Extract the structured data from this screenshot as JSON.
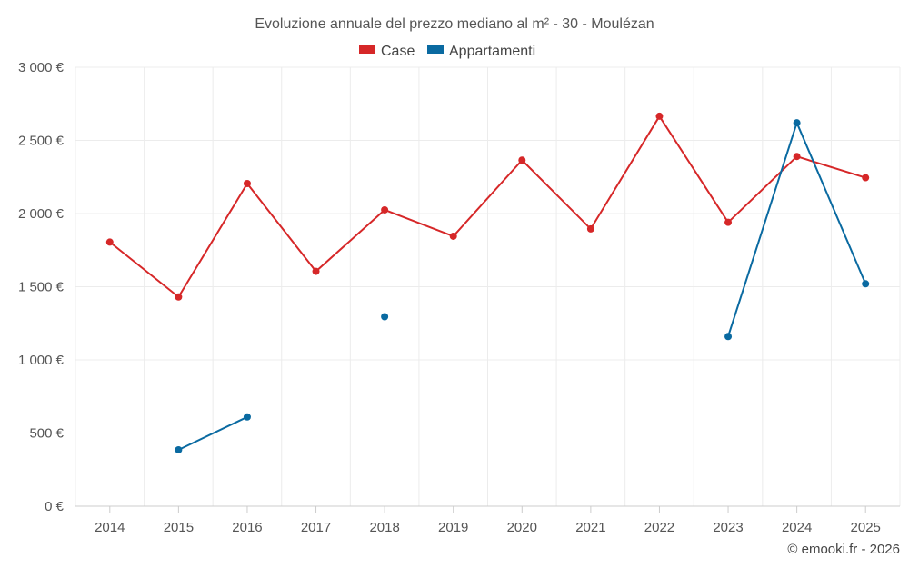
{
  "chart_data": {
    "type": "line",
    "title": "Evoluzione annuale del prezzo mediano al m² - 30 - Moulézan",
    "xlabel": "",
    "ylabel": "",
    "categories": [
      "2014",
      "2015",
      "2016",
      "2017",
      "2018",
      "2019",
      "2020",
      "2021",
      "2022",
      "2023",
      "2024",
      "2025"
    ],
    "ylim": [
      0,
      3000
    ],
    "yticks": [
      0,
      500,
      1000,
      1500,
      2000,
      2500,
      3000
    ],
    "ytick_labels": [
      "0 €",
      "500 €",
      "1 000 €",
      "1 500 €",
      "2 000 €",
      "2 500 €",
      "3 000 €"
    ],
    "grid": true,
    "legend_position": "top-center",
    "series": [
      {
        "name": "Case",
        "color": "#d62728",
        "values": [
          1805,
          1430,
          2205,
          1605,
          2025,
          1845,
          2365,
          1895,
          2665,
          1940,
          2390,
          2245
        ]
      },
      {
        "name": "Appartamenti",
        "color": "#0a6aa1",
        "values": [
          null,
          385,
          610,
          null,
          1295,
          null,
          null,
          null,
          null,
          1160,
          2620,
          1520
        ]
      }
    ]
  },
  "credit": "© emooki.fr - 2026"
}
